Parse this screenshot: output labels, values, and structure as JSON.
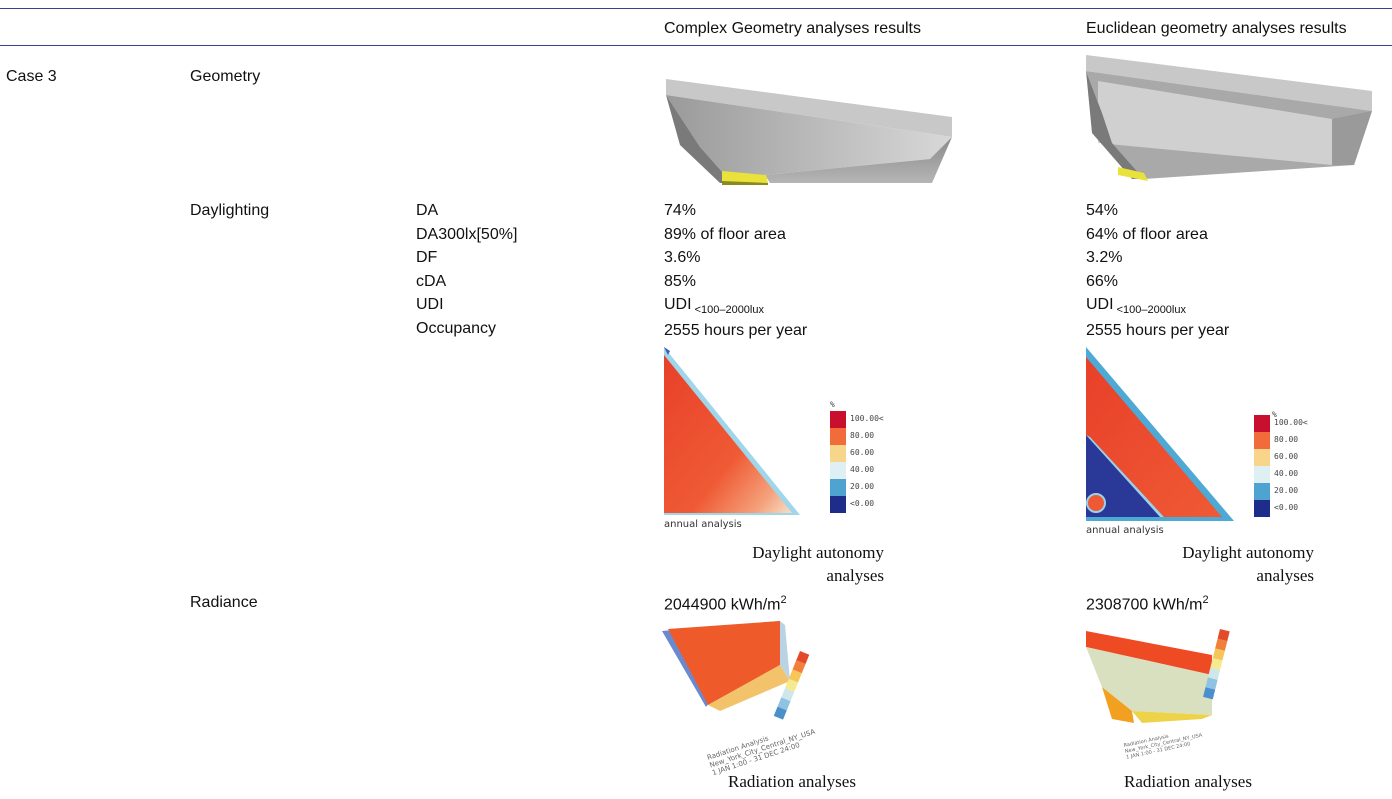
{
  "header": {
    "col_complex": "Complex Geometry analyses results",
    "col_euclid": "Euclidean geometry analyses results"
  },
  "row": {
    "case": "Case 3",
    "geometry_label": "Geometry",
    "daylighting_label": "Daylighting",
    "radiance_label": "Radiance"
  },
  "metrics": [
    "DA",
    "DA300lx[50%]",
    "DF",
    "cDA",
    "UDI",
    "Occupancy"
  ],
  "complex": {
    "values": [
      "74%",
      "89% of floor area",
      "3.6%",
      "85%"
    ],
    "udi_prefix": "UDI",
    "udi_sub": "<100–2000lux",
    "occupancy": "2555 hours per year",
    "daylight_caption_1": "Daylight autonomy",
    "daylight_caption_2": "analyses",
    "radiance_value": "2044900 kWh/m",
    "radiance_exp": "2",
    "radiation_caption": "Radiation analyses",
    "annual_label": "annual analysis",
    "rad_title_1": "Radiation Analysis",
    "rad_title_2": "New_York_City_Central_NY_USA",
    "rad_title_3": "1 JAN 1:00 - 31 DEC 24:00"
  },
  "euclid": {
    "values": [
      "54%",
      "64% of floor area",
      "3.2%",
      "66%"
    ],
    "udi_prefix": "UDI",
    "udi_sub": "<100–2000lux",
    "occupancy": "2555 hours per year",
    "daylight_caption_1": "Daylight autonomy",
    "daylight_caption_2": "analyses",
    "radiance_value": "2308700 kWh/m",
    "radiance_exp": "2",
    "radiation_caption": "Radiation analyses",
    "annual_label": "annual analysis",
    "rad_title_1": "Radiation Analysis",
    "rad_title_2": "New_York_City_Central_NY_USA",
    "rad_title_3": "1 JAN 1:00 - 31 DEC 24:00"
  },
  "legend": {
    "unit": "%",
    "labels": [
      "100.00<",
      "80.00",
      "60.00",
      "40.00",
      "20.00",
      "<0.00"
    ],
    "colors": [
      "#c8102e",
      "#f26b3a",
      "#f7d58a",
      "#dff0f4",
      "#4fa3d1",
      "#1f2d8a"
    ]
  }
}
